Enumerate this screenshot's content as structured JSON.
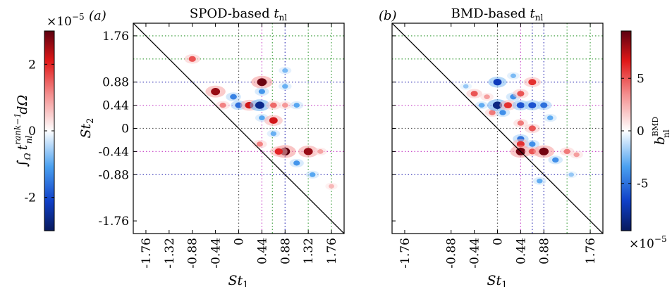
{
  "colorbars": {
    "left": {
      "label_main": "∫",
      "label_sub": "Ω",
      "label_t": "t",
      "label_sup": "rank−1",
      "label_sub2": "nl",
      "label_tail": "dΩ",
      "multiplier": "×10",
      "exponent": "−5",
      "ticks": [
        {
          "value": 2,
          "text": "2"
        },
        {
          "value": 0,
          "text": "0"
        },
        {
          "value": -2,
          "text": "-2"
        }
      ],
      "range": [
        -3,
        3
      ]
    },
    "right": {
      "label_b": "b",
      "label_sup": "BMD",
      "label_sub": "nl",
      "multiplier": "×10",
      "exponent": "−5",
      "ticks": [
        {
          "value": 5,
          "text": "5"
        },
        {
          "value": 0,
          "text": "0"
        },
        {
          "value": -5,
          "text": "-5"
        }
      ],
      "range": [
        -9.5,
        9.5
      ]
    }
  },
  "chart_data": [
    {
      "type": "heatmap",
      "panel_tag": "(a)",
      "title_text": "SPOD-based ",
      "title_var": "t",
      "title_sub": "nl",
      "xlabel_base": "St",
      "xlabel_sub": "1",
      "ylabel_base": "St",
      "ylabel_sub": "2",
      "xlim": [
        -2.0,
        2.0
      ],
      "ylim": [
        -2.0,
        2.0
      ],
      "xticks": [
        {
          "value": -1.76,
          "text": "-1.76"
        },
        {
          "value": -1.32,
          "text": "-1.32"
        },
        {
          "value": -0.88,
          "text": "-0.88"
        },
        {
          "value": -0.44,
          "text": "-0.44"
        },
        {
          "value": 0,
          "text": "0"
        },
        {
          "value": 0.44,
          "text": "0.44"
        },
        {
          "value": 0.88,
          "text": "0.88"
        },
        {
          "value": 1.32,
          "text": "1.32"
        },
        {
          "value": 1.76,
          "text": "1.76"
        }
      ],
      "yticks": [
        {
          "value": 1.76,
          "text": "1.76"
        },
        {
          "value": 0.88,
          "text": "0.88"
        },
        {
          "value": 0.44,
          "text": "0.44"
        },
        {
          "value": 0,
          "text": "0"
        },
        {
          "value": -0.44,
          "text": "-0.44"
        },
        {
          "value": -0.88,
          "text": "-0.88"
        },
        {
          "value": -1.76,
          "text": "-1.76"
        }
      ],
      "guide_lines": [
        {
          "axis": "x",
          "value": 0,
          "color": "#555555"
        },
        {
          "axis": "x",
          "value": 0.44,
          "color": "#cc55cc"
        },
        {
          "axis": "x",
          "value": 0.64,
          "color": "#55aa55"
        },
        {
          "axis": "x",
          "value": 0.88,
          "color": "#4444bb"
        },
        {
          "axis": "x",
          "value": 1.32,
          "color": "#55aa55"
        },
        {
          "axis": "x",
          "value": 1.76,
          "color": "#55aa55"
        },
        {
          "axis": "y",
          "value": 1.76,
          "color": "#55aa55"
        },
        {
          "axis": "y",
          "value": 1.32,
          "color": "#55aa55"
        },
        {
          "axis": "y",
          "value": 0.88,
          "color": "#4444bb"
        },
        {
          "axis": "y",
          "value": 0.44,
          "color": "#cc55cc"
        },
        {
          "axis": "y",
          "value": 0,
          "color": "#555555"
        },
        {
          "axis": "y",
          "value": -0.44,
          "color": "#cc55cc"
        },
        {
          "axis": "y",
          "value": -0.88,
          "color": "#4444bb"
        }
      ],
      "spots": [
        {
          "x": -0.88,
          "y": 1.32,
          "v": 1.6
        },
        {
          "x": -0.44,
          "y": 0.7,
          "v": 2.6
        },
        {
          "x": -0.3,
          "y": 0.44,
          "v": 1.2
        },
        {
          "x": -0.1,
          "y": 0.6,
          "v": -1.4
        },
        {
          "x": 0.0,
          "y": 0.44,
          "v": -1.6
        },
        {
          "x": 0.2,
          "y": 0.44,
          "v": 2.2
        },
        {
          "x": 0.4,
          "y": 0.44,
          "v": -2.6
        },
        {
          "x": 0.44,
          "y": 0.88,
          "v": 2.9
        },
        {
          "x": 0.44,
          "y": 0.7,
          "v": -1.2
        },
        {
          "x": 0.44,
          "y": 0.2,
          "v": -1.0
        },
        {
          "x": 0.66,
          "y": 0.44,
          "v": 1.4
        },
        {
          "x": 0.66,
          "y": 0.15,
          "v": 2.2
        },
        {
          "x": 0.66,
          "y": -0.1,
          "v": -0.9
        },
        {
          "x": 0.88,
          "y": 1.1,
          "v": -0.8
        },
        {
          "x": 0.88,
          "y": 0.44,
          "v": 1.0
        },
        {
          "x": 0.88,
          "y": 0.8,
          "v": -0.9
        },
        {
          "x": 0.88,
          "y": -0.44,
          "v": 3.0
        },
        {
          "x": 0.76,
          "y": -0.44,
          "v": 2.0
        },
        {
          "x": 1.1,
          "y": 0.44,
          "v": -1.0
        },
        {
          "x": 1.1,
          "y": -0.66,
          "v": -1.2
        },
        {
          "x": 1.32,
          "y": -0.44,
          "v": 2.6
        },
        {
          "x": 1.4,
          "y": -0.88,
          "v": -1.0
        },
        {
          "x": 0.4,
          "y": -0.3,
          "v": 1.2
        },
        {
          "x": 1.76,
          "y": -1.1,
          "v": 0.7
        },
        {
          "x": 1.55,
          "y": -0.44,
          "v": 0.9
        }
      ]
    },
    {
      "type": "heatmap",
      "panel_tag": "(b)",
      "title_text": "BMD-based ",
      "title_var": "t",
      "title_sub": "nl",
      "xlabel_base": "St",
      "xlabel_sub": "1",
      "xlim": [
        -2.0,
        2.0
      ],
      "ylim": [
        -2.0,
        2.0
      ],
      "xticks": [
        {
          "value": -1.76,
          "text": "-1.76"
        },
        {
          "value": -0.88,
          "text": "-0.88"
        },
        {
          "value": -0.44,
          "text": "-0.44"
        },
        {
          "value": 0,
          "text": "0"
        },
        {
          "value": 0.44,
          "text": "0.44"
        },
        {
          "value": 0.88,
          "text": "0.88"
        },
        {
          "value": 1.76,
          "text": "1.76"
        }
      ],
      "guide_lines": [
        {
          "axis": "x",
          "value": 0,
          "color": "#555555"
        },
        {
          "axis": "x",
          "value": 0.44,
          "color": "#cc55cc"
        },
        {
          "axis": "x",
          "value": 0.66,
          "color": "#4444bb"
        },
        {
          "axis": "x",
          "value": 0.88,
          "color": "#4444bb"
        },
        {
          "axis": "x",
          "value": 1.32,
          "color": "#55aa55"
        },
        {
          "axis": "x",
          "value": 1.76,
          "color": "#55aa55"
        },
        {
          "axis": "y",
          "value": 1.76,
          "color": "#55aa55"
        },
        {
          "axis": "y",
          "value": 1.32,
          "color": "#55aa55"
        },
        {
          "axis": "y",
          "value": 0.88,
          "color": "#4444bb"
        },
        {
          "axis": "y",
          "value": 0.44,
          "color": "#cc55cc"
        },
        {
          "axis": "y",
          "value": 0,
          "color": "#555555"
        },
        {
          "axis": "y",
          "value": -0.44,
          "color": "#cc55cc"
        },
        {
          "axis": "y",
          "value": -0.88,
          "color": "#4444bb"
        }
      ],
      "spots": [
        {
          "x": -0.44,
          "y": 0.66,
          "v": 5.0
        },
        {
          "x": -0.3,
          "y": 0.44,
          "v": -3.0
        },
        {
          "x": -0.2,
          "y": 0.6,
          "v": 3.0
        },
        {
          "x": -0.1,
          "y": 0.3,
          "v": 4.0
        },
        {
          "x": 0.0,
          "y": 0.88,
          "v": -7.0
        },
        {
          "x": 0.0,
          "y": 0.44,
          "v": -8.5
        },
        {
          "x": 0.1,
          "y": 0.3,
          "v": -4.0
        },
        {
          "x": 0.2,
          "y": 0.44,
          "v": 6.0
        },
        {
          "x": 0.3,
          "y": 0.6,
          "v": -4.0
        },
        {
          "x": 0.44,
          "y": 0.66,
          "v": 5.0
        },
        {
          "x": 0.44,
          "y": 0.44,
          "v": -6.0
        },
        {
          "x": 0.44,
          "y": 0.1,
          "v": 4.0
        },
        {
          "x": 0.44,
          "y": -0.2,
          "v": -5.0
        },
        {
          "x": 0.44,
          "y": -0.3,
          "v": 6.0
        },
        {
          "x": 0.44,
          "y": -0.44,
          "v": 9.0
        },
        {
          "x": 0.66,
          "y": 0.88,
          "v": 6.0
        },
        {
          "x": 0.66,
          "y": 0.44,
          "v": -6.0
        },
        {
          "x": 0.66,
          "y": 0.0,
          "v": 5.0
        },
        {
          "x": 0.66,
          "y": -0.3,
          "v": -4.0
        },
        {
          "x": 0.66,
          "y": -0.44,
          "v": 5.0
        },
        {
          "x": 0.88,
          "y": 0.44,
          "v": -5.0
        },
        {
          "x": 0.88,
          "y": -0.44,
          "v": 9.0
        },
        {
          "x": 1.1,
          "y": -0.6,
          "v": -4.0
        },
        {
          "x": 1.32,
          "y": -0.44,
          "v": 4.0
        },
        {
          "x": 1.5,
          "y": -0.5,
          "v": 3.0
        },
        {
          "x": 0.3,
          "y": 1.0,
          "v": -2.5
        },
        {
          "x": -0.6,
          "y": 0.8,
          "v": -2.0
        },
        {
          "x": 1.0,
          "y": 0.2,
          "v": -3.0
        },
        {
          "x": 1.4,
          "y": -0.88,
          "v": -2.0
        },
        {
          "x": 0.8,
          "y": -1.0,
          "v": -3.0
        }
      ]
    }
  ]
}
